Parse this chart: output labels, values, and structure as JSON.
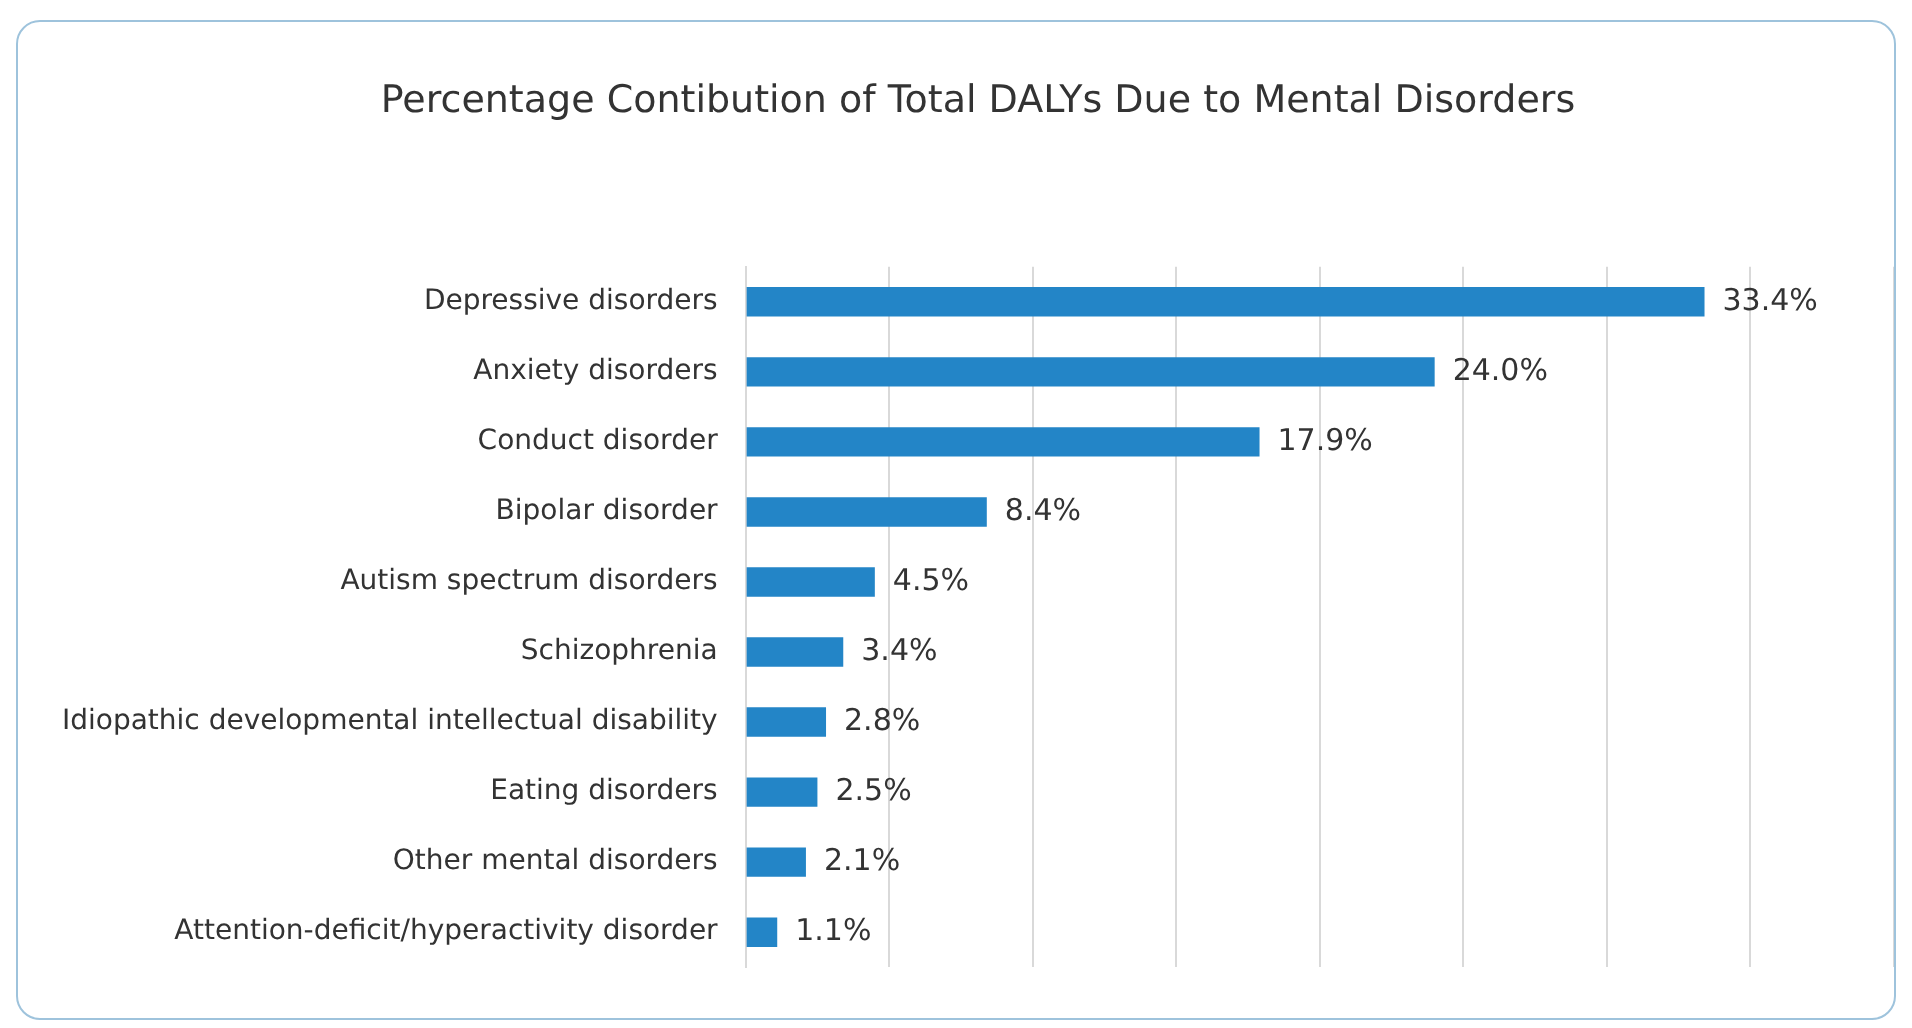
{
  "chart_data": {
    "type": "bar",
    "orientation": "horizontal",
    "title": "Percentage Contibution of Total DALYs Due to Mental Disorders",
    "categories": [
      "Depressive disorders",
      "Anxiety disorders",
      "Conduct disorder",
      "Bipolar disorder",
      "Autism spectrum disorders",
      "Schizophrenia",
      "Idiopathic developmental intellectual disability",
      "Eating disorders",
      "Other mental disorders",
      "Attention-deficit/hyperactivity disorder"
    ],
    "values": [
      33.4,
      24.0,
      17.9,
      8.4,
      4.5,
      3.4,
      2.8,
      2.5,
      2.1,
      1.1
    ],
    "value_labels": [
      "33.4%",
      "24.0%",
      "17.9%",
      "8.4%",
      "4.5%",
      "3.4%",
      "2.8%",
      "2.5%",
      "2.1%",
      "1.1%"
    ],
    "color": "#2385c7",
    "xlim": [
      0,
      40
    ],
    "xticks": [
      {
        "value": 0,
        "label": null
      },
      {
        "value": 5,
        "label": null
      },
      {
        "value": 10,
        "label": null
      },
      {
        "value": 15,
        "label": null
      },
      {
        "value": 20,
        "label": null
      },
      {
        "value": 25,
        "label": null
      },
      {
        "value": 30,
        "label": null
      },
      {
        "value": 35,
        "label": null
      },
      {
        "value": 40,
        "label": null
      }
    ],
    "grid": "x",
    "tick_labels": "y",
    "legend": false
  }
}
